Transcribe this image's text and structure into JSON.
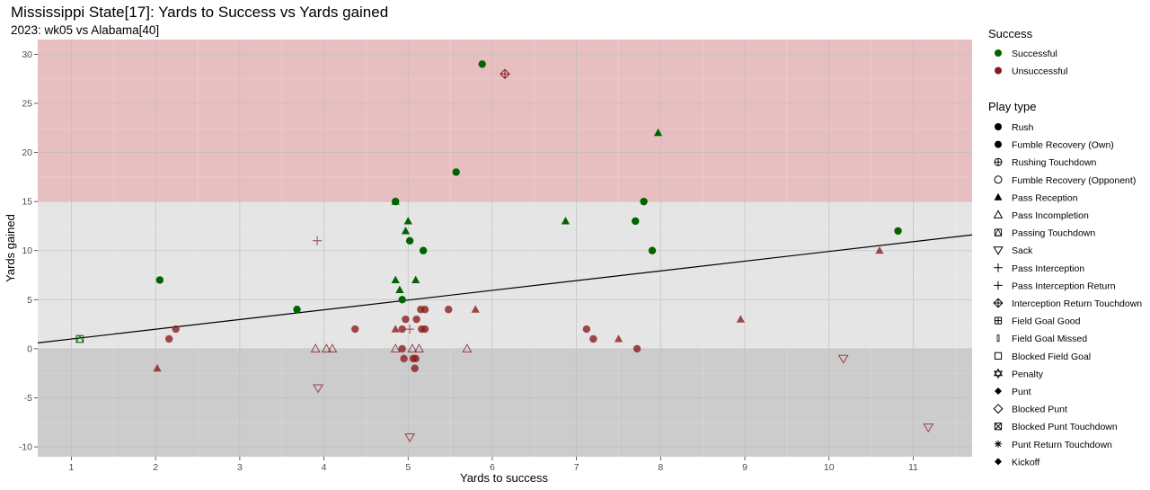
{
  "chart_data": {
    "type": "scatter",
    "title": "Mississippi State[17]: Yards to Success vs Yards gained",
    "subtitle": "2023: wk05 vs Alabama[40]",
    "xlabel": "Yards to success",
    "ylabel": "Yards gained",
    "xlim": [
      0.6,
      11.7
    ],
    "ylim": [
      -11,
      31.5
    ],
    "x_ticks": [
      "1",
      "2",
      "3",
      "4",
      "5",
      "6",
      "7",
      "8",
      "9",
      "10",
      "11"
    ],
    "y_ticks": [
      "-10",
      "-5",
      "0",
      "5",
      "10",
      "15",
      "20",
      "25",
      "30"
    ],
    "bands": [
      {
        "y0": 15,
        "y1": 31.5,
        "color": "#e8bfc1"
      },
      {
        "y0": 0,
        "y1": 15,
        "color": "#e5e5e5"
      },
      {
        "y0": -11,
        "y1": 0,
        "color": "#cccccc"
      }
    ],
    "trend_line": {
      "x": [
        0.6,
        11.7
      ],
      "y": [
        0.6,
        11.6
      ]
    },
    "colors": {
      "Successful": "#006400",
      "Unsuccessful": "#8b1a1a"
    },
    "points": [
      {
        "x": 5.88,
        "y": 29,
        "success": "Successful",
        "play": "Rush"
      },
      {
        "x": 6.15,
        "y": 28,
        "success": "Unsuccessful",
        "play": "Interception Return Touchdown"
      },
      {
        "x": 7.97,
        "y": 22,
        "success": "Successful",
        "play": "Pass Reception"
      },
      {
        "x": 5.57,
        "y": 18,
        "success": "Successful",
        "play": "Rush"
      },
      {
        "x": 4.85,
        "y": 15,
        "success": "Successful",
        "play": "Pass Reception"
      },
      {
        "x": 4.85,
        "y": 15,
        "success": "Successful",
        "play": "Rush"
      },
      {
        "x": 7.8,
        "y": 15,
        "success": "Successful",
        "play": "Rush"
      },
      {
        "x": 5.0,
        "y": 13,
        "success": "Successful",
        "play": "Pass Reception"
      },
      {
        "x": 6.87,
        "y": 13,
        "success": "Successful",
        "play": "Pass Reception"
      },
      {
        "x": 7.7,
        "y": 13,
        "success": "Successful",
        "play": "Rush"
      },
      {
        "x": 4.97,
        "y": 12,
        "success": "Successful",
        "play": "Pass Reception"
      },
      {
        "x": 10.82,
        "y": 12,
        "success": "Successful",
        "play": "Rush"
      },
      {
        "x": 5.02,
        "y": 11,
        "success": "Successful",
        "play": "Rush"
      },
      {
        "x": 3.92,
        "y": 11,
        "success": "Unsuccessful",
        "play": "Pass Interception"
      },
      {
        "x": 5.18,
        "y": 10,
        "success": "Successful",
        "play": "Rush"
      },
      {
        "x": 7.9,
        "y": 10,
        "success": "Successful",
        "play": "Rush"
      },
      {
        "x": 10.6,
        "y": 10,
        "success": "Unsuccessful",
        "play": "Pass Reception"
      },
      {
        "x": 2.05,
        "y": 7,
        "success": "Successful",
        "play": "Rush"
      },
      {
        "x": 4.85,
        "y": 7,
        "success": "Successful",
        "play": "Pass Reception"
      },
      {
        "x": 5.09,
        "y": 7,
        "success": "Successful",
        "play": "Pass Reception"
      },
      {
        "x": 4.9,
        "y": 6,
        "success": "Successful",
        "play": "Pass Reception"
      },
      {
        "x": 4.93,
        "y": 5,
        "success": "Successful",
        "play": "Rush"
      },
      {
        "x": 3.68,
        "y": 4,
        "success": "Successful",
        "play": "Rush"
      },
      {
        "x": 5.15,
        "y": 4,
        "success": "Unsuccessful",
        "play": "Rush"
      },
      {
        "x": 5.2,
        "y": 4,
        "success": "Unsuccessful",
        "play": "Rush"
      },
      {
        "x": 5.48,
        "y": 4,
        "success": "Unsuccessful",
        "play": "Rush"
      },
      {
        "x": 5.8,
        "y": 4,
        "success": "Unsuccessful",
        "play": "Pass Reception"
      },
      {
        "x": 4.97,
        "y": 3,
        "success": "Unsuccessful",
        "play": "Rush"
      },
      {
        "x": 5.1,
        "y": 3,
        "success": "Unsuccessful",
        "play": "Rush"
      },
      {
        "x": 8.95,
        "y": 3,
        "success": "Unsuccessful",
        "play": "Pass Reception"
      },
      {
        "x": 2.24,
        "y": 2,
        "success": "Unsuccessful",
        "play": "Rush"
      },
      {
        "x": 4.37,
        "y": 2,
        "success": "Unsuccessful",
        "play": "Rush"
      },
      {
        "x": 4.85,
        "y": 2,
        "success": "Unsuccessful",
        "play": "Pass Reception"
      },
      {
        "x": 4.93,
        "y": 2,
        "success": "Unsuccessful",
        "play": "Rush"
      },
      {
        "x": 5.02,
        "y": 2,
        "success": "Unsuccessful",
        "play": "Pass Interception"
      },
      {
        "x": 5.16,
        "y": 2,
        "success": "Unsuccessful",
        "play": "Rush"
      },
      {
        "x": 5.2,
        "y": 2,
        "success": "Unsuccessful",
        "play": "Rush"
      },
      {
        "x": 7.12,
        "y": 2,
        "success": "Unsuccessful",
        "play": "Rush"
      },
      {
        "x": 1.1,
        "y": 1,
        "success": "Successful",
        "play": "Passing Touchdown"
      },
      {
        "x": 2.16,
        "y": 1,
        "success": "Unsuccessful",
        "play": "Rush"
      },
      {
        "x": 7.2,
        "y": 1,
        "success": "Unsuccessful",
        "play": "Rush"
      },
      {
        "x": 7.5,
        "y": 1,
        "success": "Unsuccessful",
        "play": "Pass Reception"
      },
      {
        "x": 3.9,
        "y": 0,
        "success": "Unsuccessful",
        "play": "Pass Incompletion"
      },
      {
        "x": 4.03,
        "y": 0,
        "success": "Unsuccessful",
        "play": "Pass Incompletion"
      },
      {
        "x": 4.1,
        "y": 0,
        "success": "Unsuccessful",
        "play": "Pass Incompletion"
      },
      {
        "x": 4.85,
        "y": 0,
        "success": "Unsuccessful",
        "play": "Pass Incompletion"
      },
      {
        "x": 4.93,
        "y": 0,
        "success": "Unsuccessful",
        "play": "Rush"
      },
      {
        "x": 5.05,
        "y": 0,
        "success": "Unsuccessful",
        "play": "Pass Incompletion"
      },
      {
        "x": 5.13,
        "y": 0,
        "success": "Unsuccessful",
        "play": "Pass Incompletion"
      },
      {
        "x": 5.7,
        "y": 0,
        "success": "Unsuccessful",
        "play": "Pass Incompletion"
      },
      {
        "x": 7.72,
        "y": 0,
        "success": "Unsuccessful",
        "play": "Rush"
      },
      {
        "x": 4.95,
        "y": -1,
        "success": "Unsuccessful",
        "play": "Rush"
      },
      {
        "x": 5.06,
        "y": -1,
        "success": "Unsuccessful",
        "play": "Rush"
      },
      {
        "x": 5.09,
        "y": -1,
        "success": "Unsuccessful",
        "play": "Rush"
      },
      {
        "x": 10.17,
        "y": -1,
        "success": "Unsuccessful",
        "play": "Sack"
      },
      {
        "x": 5.08,
        "y": -2,
        "success": "Unsuccessful",
        "play": "Rush"
      },
      {
        "x": 2.02,
        "y": -2,
        "success": "Unsuccessful",
        "play": "Pass Reception"
      },
      {
        "x": 3.93,
        "y": -4,
        "success": "Unsuccessful",
        "play": "Sack"
      },
      {
        "x": 11.18,
        "y": -8,
        "success": "Unsuccessful",
        "play": "Sack"
      },
      {
        "x": 5.02,
        "y": -9,
        "success": "Unsuccessful",
        "play": "Sack"
      }
    ]
  },
  "legend": {
    "success_title": "Success",
    "success_items": [
      {
        "label": "Successful",
        "color": "#006400"
      },
      {
        "label": "Unsuccessful",
        "color": "#8b1a1a"
      }
    ],
    "play_title": "Play type",
    "play_items": [
      {
        "label": "Rush",
        "shape": "circle-filled"
      },
      {
        "label": "Fumble Recovery (Own)",
        "shape": "circle-filled"
      },
      {
        "label": "Rushing Touchdown",
        "shape": "circle-plus"
      },
      {
        "label": "Fumble Recovery (Opponent)",
        "shape": "circle-open"
      },
      {
        "label": "Pass Reception",
        "shape": "triangle-filled"
      },
      {
        "label": "Pass Incompletion",
        "shape": "triangle-open"
      },
      {
        "label": "Passing Touchdown",
        "shape": "square-triangle"
      },
      {
        "label": "Sack",
        "shape": "triangle-down-open"
      },
      {
        "label": "Pass Interception",
        "shape": "plus"
      },
      {
        "label": "Pass Interception Return",
        "shape": "plus"
      },
      {
        "label": "Interception Return Touchdown",
        "shape": "diamond-plus"
      },
      {
        "label": "Field Goal Good",
        "shape": "square-plus"
      },
      {
        "label": "Field Goal Missed",
        "shape": "thin-rect"
      },
      {
        "label": "Blocked Field Goal",
        "shape": "square-open"
      },
      {
        "label": "Penalty",
        "shape": "star-of-david"
      },
      {
        "label": "Punt",
        "shape": "diamond-filled"
      },
      {
        "label": "Blocked Punt",
        "shape": "diamond-open"
      },
      {
        "label": "Blocked Punt Touchdown",
        "shape": "square-x"
      },
      {
        "label": "Punt Return Touchdown",
        "shape": "asterisk"
      },
      {
        "label": "Kickoff",
        "shape": "diamond-filled"
      }
    ]
  }
}
